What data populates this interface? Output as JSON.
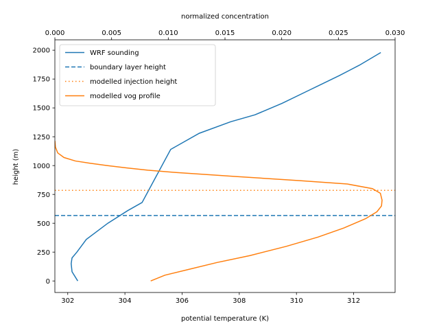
{
  "chart_data": {
    "type": "line",
    "xlabel": "potential temperature (K)",
    "x2label": "normalized concentration",
    "ylabel": "height (m)",
    "xlim": [
      301.55,
      313.45
    ],
    "x2lim": [
      0.0,
      0.03
    ],
    "ylim": [
      -100,
      2090
    ],
    "xticks": [
      302,
      304,
      306,
      308,
      310,
      312
    ],
    "xtick_labels": [
      "302",
      "304",
      "306",
      "308",
      "310",
      "312"
    ],
    "x2ticks": [
      0.0,
      0.005,
      0.01,
      0.015,
      0.02,
      0.025,
      0.03
    ],
    "x2tick_labels": [
      "0.000",
      "0.005",
      "0.010",
      "0.015",
      "0.020",
      "0.025",
      "0.030"
    ],
    "yticks": [
      0,
      250,
      500,
      750,
      1000,
      1250,
      1500,
      1750,
      2000
    ],
    "ytick_labels": [
      "0",
      "250",
      "500",
      "750",
      "1000",
      "1250",
      "1500",
      "1750",
      "2000"
    ],
    "legend_position": "top-left",
    "series": [
      {
        "name": "WRF sounding",
        "axis": "bottom",
        "color": "#1f77b4",
        "style": "solid",
        "x": [
          302.35,
          302.15,
          302.12,
          302.15,
          302.32,
          302.65,
          303.4,
          304.1,
          304.6,
          305.1,
          305.6,
          306.6,
          307.7,
          308.55,
          309.5,
          310.5,
          311.5,
          312.2,
          312.95
        ],
        "y": [
          0,
          80,
          150,
          200,
          250,
          360,
          500,
          610,
          680,
          910,
          1140,
          1280,
          1380,
          1440,
          1540,
          1660,
          1780,
          1870,
          1980
        ]
      },
      {
        "name": "boundary layer height",
        "axis": "bottom",
        "color": "#1f77b4",
        "style": "dashed",
        "y_constant": 567
      },
      {
        "name": "modelled injection height",
        "axis": "bottom",
        "color": "#ff7f0e",
        "style": "dotted",
        "y_constant": 785
      },
      {
        "name": "modelled vog profile",
        "axis": "top",
        "color": "#ff7f0e",
        "style": "solid",
        "x": [
          0.00845,
          0.0097,
          0.0118,
          0.0143,
          0.0172,
          0.0204,
          0.0232,
          0.0255,
          0.0274,
          0.0284,
          0.0288,
          0.02885,
          0.0287,
          0.028,
          0.0258,
          0.0215,
          0.016,
          0.0107,
          0.0082,
          0.0063,
          0.0046,
          0.0031,
          0.0018,
          0.0008,
          0.00025,
          5e-05,
          0.0
        ],
        "y": [
          0,
          50,
          100,
          160,
          220,
          300,
          380,
          460,
          540,
          600,
          650,
          700,
          760,
          800,
          840,
          870,
          905,
          940,
          960,
          980,
          1000,
          1020,
          1040,
          1070,
          1110,
          1160,
          1215
        ]
      }
    ]
  }
}
